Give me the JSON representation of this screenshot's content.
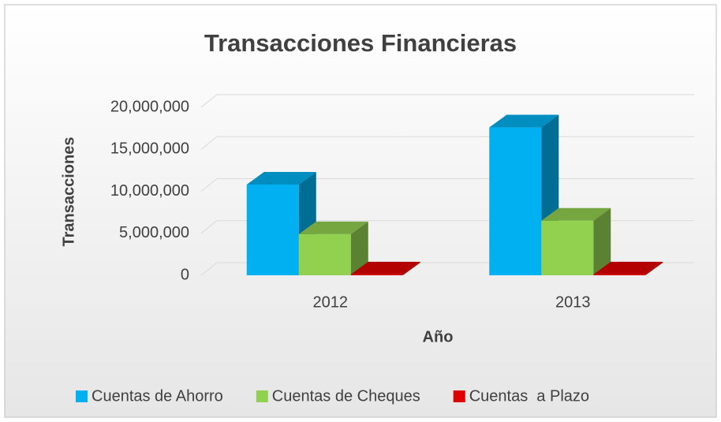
{
  "chart_data": {
    "type": "bar3d",
    "title": "Transacciones Financieras",
    "x_label": "Año",
    "y_label": "Transacciones",
    "categories": [
      "2012",
      "2013"
    ],
    "series": [
      {
        "name": "Cuentas de Ahorro",
        "color": "#00b0f0",
        "values": [
          10800000,
          17600000
        ]
      },
      {
        "name": "Cuentas de Cheques",
        "color": "#92d050",
        "values": [
          4900000,
          6500000
        ]
      },
      {
        "name": "Cuentas  a Plazo",
        "color": "#e00000",
        "values": [
          100000,
          100000
        ]
      }
    ],
    "ylim": [
      0,
      20000000
    ],
    "yticks": [
      0,
      {
        "value": 5000000,
        "label": "5,000,000"
      },
      {
        "value": 10000000,
        "label": "10,000,000"
      },
      {
        "value": 15000000,
        "label": "15,000,000"
      },
      {
        "value": 20000000,
        "label": "20,000,000"
      }
    ],
    "grid": true,
    "legend": "bottom"
  }
}
